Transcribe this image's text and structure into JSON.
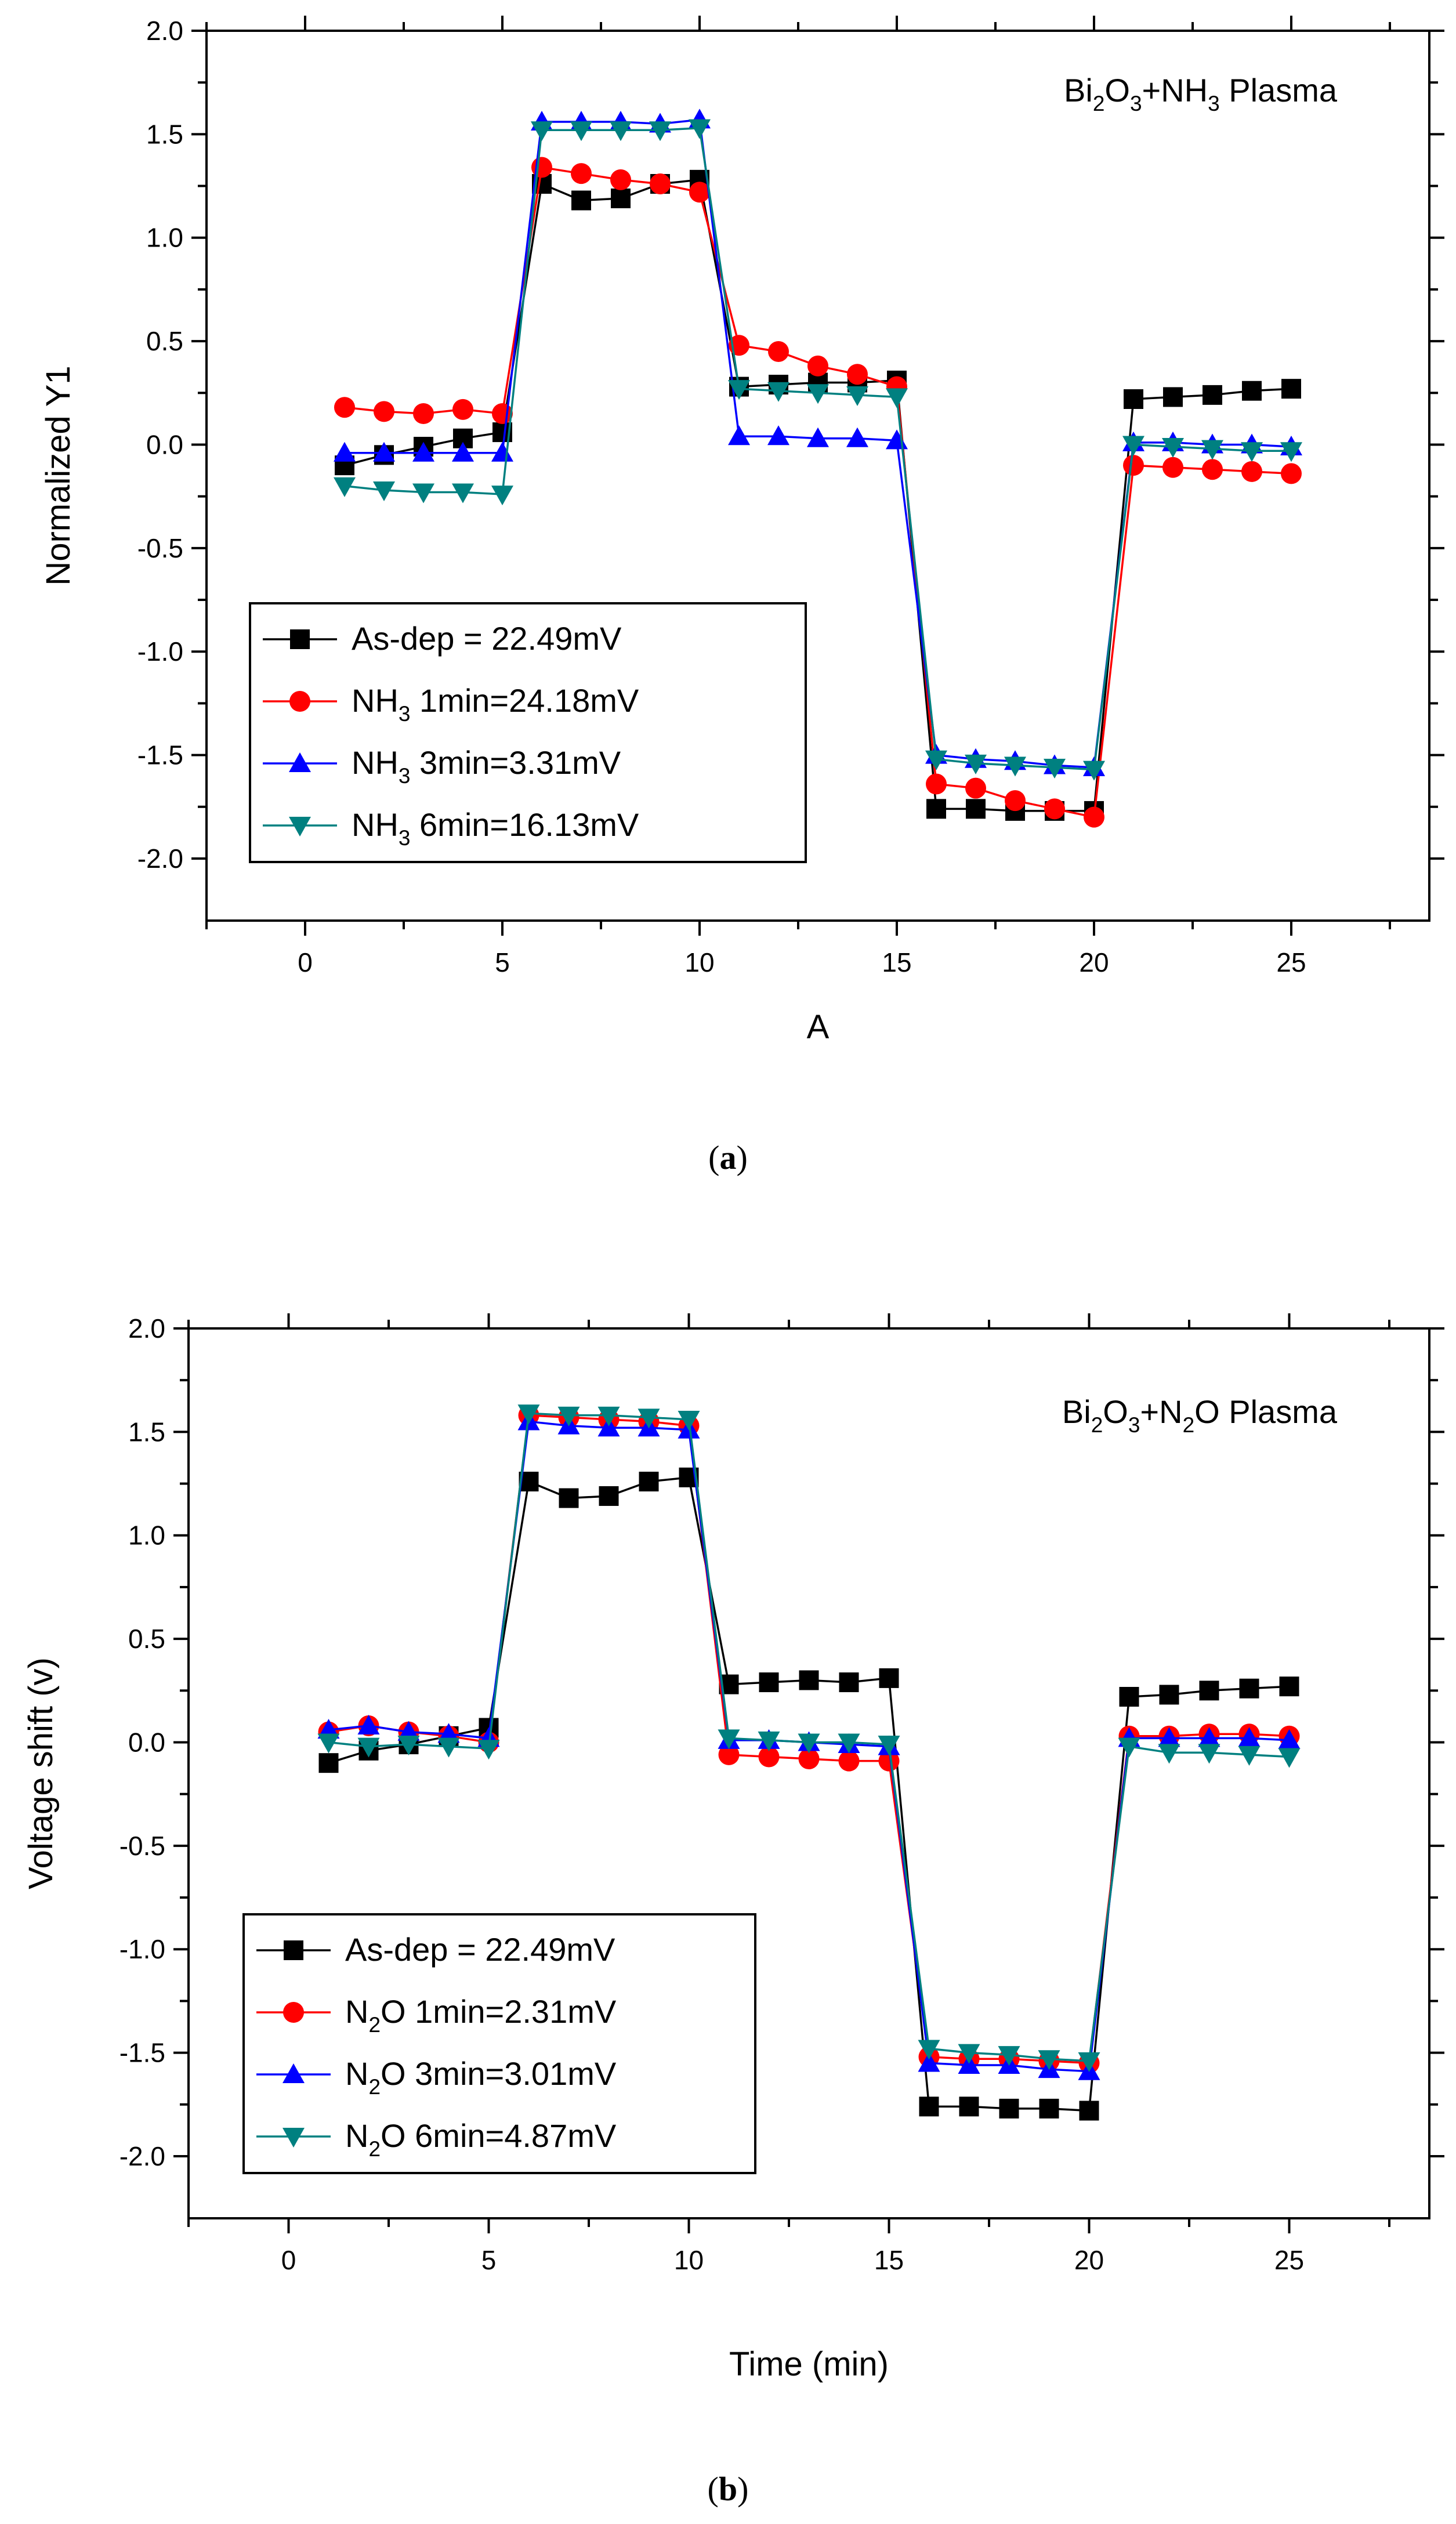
{
  "chart_data": [
    {
      "type": "line",
      "title": "Bi2O3+NH3 Plasma",
      "title_parts": [
        {
          "t": "Bi",
          "s": ""
        },
        {
          "t": "2",
          "s": "sub"
        },
        {
          "t": "O",
          "s": ""
        },
        {
          "t": "3",
          "s": "sub"
        },
        {
          "t": "+NH",
          "s": ""
        },
        {
          "t": "3",
          "s": "sub"
        },
        {
          "t": " Plasma",
          "s": ""
        }
      ],
      "xlabel": "A",
      "ylabel": "Normalized Y1",
      "caption_letter": "a",
      "xlim": [
        -2.5,
        28.5
      ],
      "ylim": [
        -2.3,
        2.0
      ],
      "xticks": [
        0,
        5,
        10,
        15,
        20,
        25
      ],
      "yticks": [
        -2.0,
        -1.5,
        -1.0,
        -0.5,
        0.0,
        0.5,
        1.0,
        1.5,
        2.0
      ],
      "legend_position": "bottom-left",
      "series": [
        {
          "name": "As-dep = 22.49mV",
          "name_parts": [
            {
              "t": "As-dep = 22.49mV",
              "s": ""
            }
          ],
          "marker": "square",
          "color": "#000000",
          "x": [
            1,
            2,
            3,
            4,
            5,
            6,
            7,
            8,
            9,
            10,
            11,
            12,
            13,
            14,
            15,
            16,
            17,
            18,
            19,
            20,
            21,
            22,
            23,
            24,
            25
          ],
          "y": [
            -0.1,
            -0.05,
            -0.01,
            0.03,
            0.06,
            1.26,
            1.18,
            1.19,
            1.26,
            1.28,
            0.28,
            0.29,
            0.3,
            0.3,
            0.31,
            -1.76,
            -1.76,
            -1.77,
            -1.77,
            -1.77,
            0.22,
            0.23,
            0.24,
            0.26,
            0.27
          ]
        },
        {
          "name": "NH3 1min=24.18mV",
          "name_parts": [
            {
              "t": "NH",
              "s": ""
            },
            {
              "t": "3",
              "s": "sub"
            },
            {
              "t": " 1min=24.18mV",
              "s": ""
            }
          ],
          "marker": "circle",
          "color": "#ff0000",
          "x": [
            1,
            2,
            3,
            4,
            5,
            6,
            7,
            8,
            9,
            10,
            11,
            12,
            13,
            14,
            15,
            16,
            17,
            18,
            19,
            20,
            21,
            22,
            23,
            24,
            25
          ],
          "y": [
            0.18,
            0.16,
            0.15,
            0.17,
            0.15,
            1.34,
            1.31,
            1.28,
            1.26,
            1.22,
            0.48,
            0.45,
            0.38,
            0.34,
            0.28,
            -1.64,
            -1.66,
            -1.72,
            -1.76,
            -1.8,
            -0.1,
            -0.11,
            -0.12,
            -0.13,
            -0.14
          ]
        },
        {
          "name": "NH3 3min=3.31mV",
          "name_parts": [
            {
              "t": "NH",
              "s": ""
            },
            {
              "t": "3",
              "s": "sub"
            },
            {
              "t": " 3min=3.31mV",
              "s": ""
            }
          ],
          "marker": "triangle-up",
          "color": "#0000ff",
          "x": [
            1,
            2,
            3,
            4,
            5,
            6,
            7,
            8,
            9,
            10,
            11,
            12,
            13,
            14,
            15,
            16,
            17,
            18,
            19,
            20,
            21,
            22,
            23,
            24,
            25
          ],
          "y": [
            -0.04,
            -0.04,
            -0.04,
            -0.04,
            -0.04,
            1.56,
            1.56,
            1.56,
            1.55,
            1.57,
            0.04,
            0.04,
            0.03,
            0.03,
            0.02,
            -1.5,
            -1.52,
            -1.53,
            -1.55,
            -1.56,
            0.01,
            0.01,
            0.0,
            0.0,
            -0.01
          ]
        },
        {
          "name": "NH3 6min=16.13mV",
          "name_parts": [
            {
              "t": "NH",
              "s": ""
            },
            {
              "t": "3",
              "s": "sub"
            },
            {
              "t": " 6min=16.13mV",
              "s": ""
            }
          ],
          "marker": "triangle-down",
          "color": "#008080",
          "x": [
            1,
            2,
            3,
            4,
            5,
            6,
            7,
            8,
            9,
            10,
            11,
            12,
            13,
            14,
            15,
            16,
            17,
            18,
            19,
            20,
            21,
            22,
            23,
            24,
            25
          ],
          "y": [
            -0.2,
            -0.22,
            -0.23,
            -0.23,
            -0.24,
            1.52,
            1.52,
            1.52,
            1.52,
            1.53,
            0.27,
            0.26,
            0.25,
            0.24,
            0.23,
            -1.52,
            -1.54,
            -1.55,
            -1.56,
            -1.57,
            0.0,
            -0.01,
            -0.02,
            -0.03,
            -0.03
          ]
        }
      ]
    },
    {
      "type": "line",
      "title": "Bi2O3+N2O Plasma",
      "title_parts": [
        {
          "t": "Bi",
          "s": ""
        },
        {
          "t": "2",
          "s": "sub"
        },
        {
          "t": "O",
          "s": ""
        },
        {
          "t": "3",
          "s": "sub"
        },
        {
          "t": "+N",
          "s": ""
        },
        {
          "t": "2",
          "s": "sub"
        },
        {
          "t": "O Plasma",
          "s": ""
        }
      ],
      "xlabel": "Time (min)",
      "ylabel": "Voltage shift (v)",
      "caption_letter": "b",
      "xlim": [
        -2.5,
        28.5
      ],
      "ylim": [
        -2.3,
        2.0
      ],
      "xticks": [
        0,
        5,
        10,
        15,
        20,
        25
      ],
      "yticks": [
        -2.0,
        -1.5,
        -1.0,
        -0.5,
        0.0,
        0.5,
        1.0,
        1.5,
        2.0
      ],
      "legend_position": "bottom-left",
      "series": [
        {
          "name": "As-dep = 22.49mV",
          "name_parts": [
            {
              "t": "As-dep = 22.49mV",
              "s": ""
            }
          ],
          "marker": "square",
          "color": "#000000",
          "x": [
            1,
            2,
            3,
            4,
            5,
            6,
            7,
            8,
            9,
            10,
            11,
            12,
            13,
            14,
            15,
            16,
            17,
            18,
            19,
            20,
            21,
            22,
            23,
            24,
            25
          ],
          "y": [
            -0.1,
            -0.04,
            -0.01,
            0.03,
            0.07,
            1.26,
            1.18,
            1.19,
            1.26,
            1.28,
            0.28,
            0.29,
            0.3,
            0.29,
            0.31,
            -1.76,
            -1.76,
            -1.77,
            -1.77,
            -1.78,
            0.22,
            0.23,
            0.25,
            0.26,
            0.27
          ]
        },
        {
          "name": "N2O 1min=2.31mV",
          "name_parts": [
            {
              "t": "N",
              "s": ""
            },
            {
              "t": "2",
              "s": "sub"
            },
            {
              "t": "O 1min=2.31mV",
              "s": ""
            }
          ],
          "marker": "circle",
          "color": "#ff0000",
          "x": [
            1,
            2,
            3,
            4,
            5,
            6,
            7,
            8,
            9,
            10,
            11,
            12,
            13,
            14,
            15,
            16,
            17,
            18,
            19,
            20,
            21,
            22,
            23,
            24,
            25
          ],
          "y": [
            0.05,
            0.08,
            0.05,
            0.03,
            0.0,
            1.58,
            1.57,
            1.56,
            1.55,
            1.53,
            -0.06,
            -0.07,
            -0.08,
            -0.09,
            -0.09,
            -1.52,
            -1.53,
            -1.53,
            -1.54,
            -1.55,
            0.03,
            0.03,
            0.04,
            0.04,
            0.03
          ]
        },
        {
          "name": "N2O 3min=3.01mV",
          "name_parts": [
            {
              "t": "N",
              "s": ""
            },
            {
              "t": "2",
              "s": "sub"
            },
            {
              "t": "O 3min=3.01mV",
              "s": ""
            }
          ],
          "marker": "triangle-up",
          "color": "#0000ff",
          "x": [
            1,
            2,
            3,
            4,
            5,
            6,
            7,
            8,
            9,
            10,
            11,
            12,
            13,
            14,
            15,
            16,
            17,
            18,
            19,
            20,
            21,
            22,
            23,
            24,
            25
          ],
          "y": [
            0.06,
            0.08,
            0.05,
            0.04,
            0.02,
            1.55,
            1.53,
            1.52,
            1.52,
            1.51,
            0.01,
            0.01,
            0.0,
            -0.01,
            -0.02,
            -1.55,
            -1.56,
            -1.56,
            -1.58,
            -1.59,
            0.02,
            0.02,
            0.02,
            0.02,
            0.01
          ]
        },
        {
          "name": "N2O 6min=4.87mV",
          "name_parts": [
            {
              "t": "N",
              "s": ""
            },
            {
              "t": "2",
              "s": "sub"
            },
            {
              "t": "O 6min=4.87mV",
              "s": ""
            }
          ],
          "marker": "triangle-down",
          "color": "#008080",
          "x": [
            1,
            2,
            3,
            4,
            5,
            6,
            7,
            8,
            9,
            10,
            11,
            12,
            13,
            14,
            15,
            16,
            17,
            18,
            19,
            20,
            21,
            22,
            23,
            24,
            25
          ],
          "y": [
            0.0,
            -0.02,
            -0.01,
            -0.02,
            -0.03,
            1.59,
            1.58,
            1.58,
            1.57,
            1.56,
            0.02,
            0.01,
            0.0,
            0.0,
            -0.01,
            -1.48,
            -1.5,
            -1.51,
            -1.53,
            -1.54,
            -0.02,
            -0.05,
            -0.05,
            -0.06,
            -0.07
          ]
        }
      ]
    }
  ]
}
